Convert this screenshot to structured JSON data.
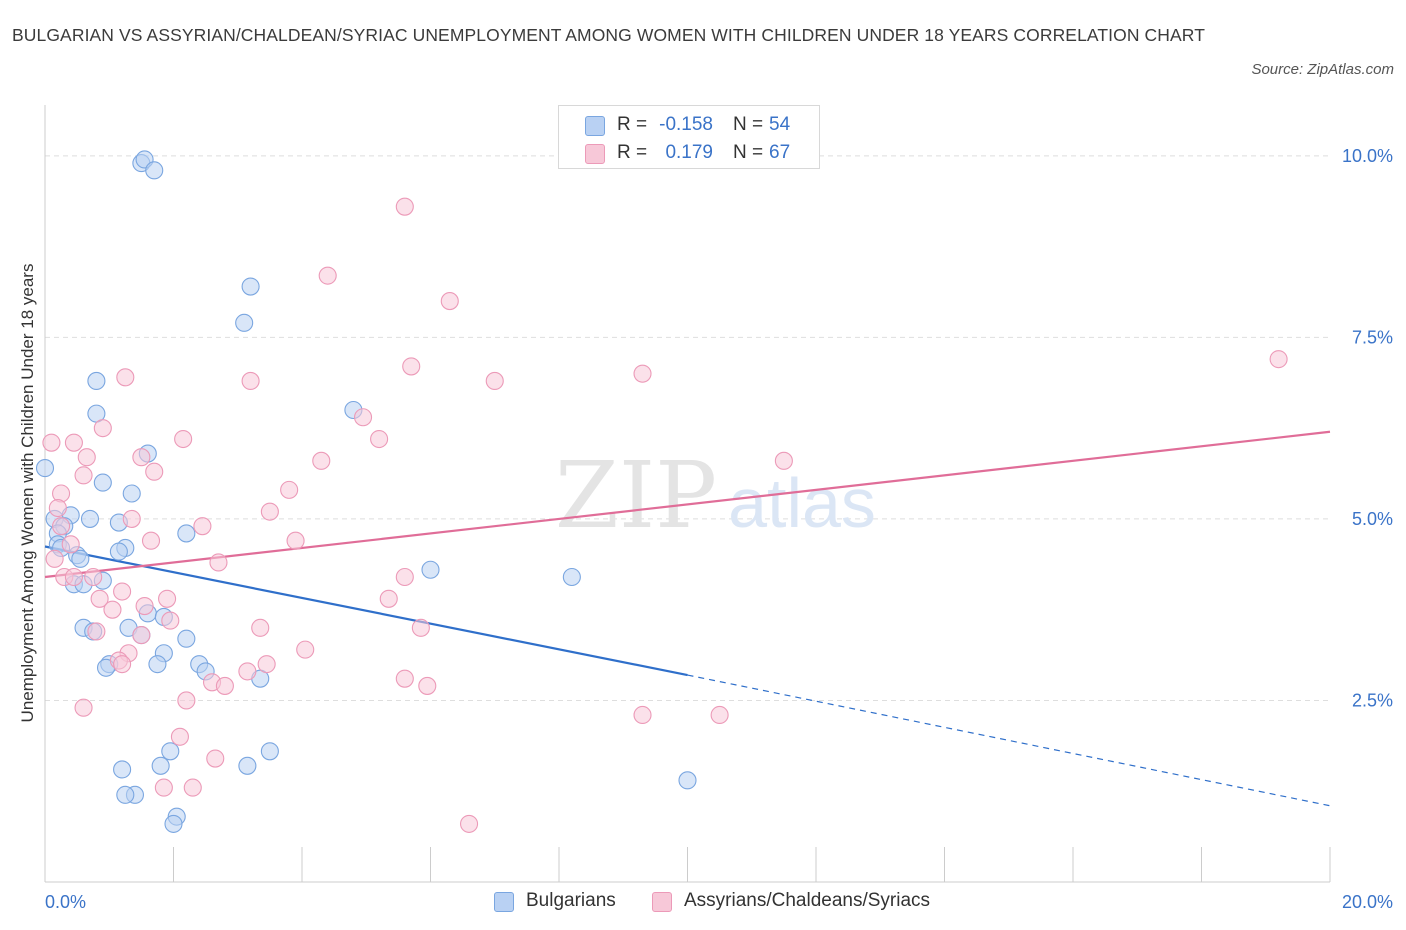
{
  "title": "BULGARIAN VS ASSYRIAN/CHALDEAN/SYRIAC UNEMPLOYMENT AMONG WOMEN WITH CHILDREN UNDER 18 YEARS CORRELATION CHART",
  "source": "Source: ZipAtlas.com",
  "watermark": {
    "zip": "ZIP",
    "atlas": "atlas"
  },
  "legend": {
    "rows": [
      {
        "r_label": "R =",
        "r_value": "-0.158",
        "n_label": "N =",
        "n_value": "54"
      },
      {
        "r_label": "R =",
        "r_value": "0.179",
        "n_label": "N =",
        "n_value": "67"
      }
    ]
  },
  "chart_data": {
    "type": "scatter",
    "title": "BULGARIAN VS ASSYRIAN/CHALDEAN/SYRIAC UNEMPLOYMENT AMONG WOMEN WITH CHILDREN UNDER 18 YEARS CORRELATION CHART",
    "xlabel": "",
    "ylabel": "Unemployment Among Women with Children Under 18 years",
    "xlim": [
      0,
      20
    ],
    "ylim": [
      0,
      10.7
    ],
    "x_tick_labels": [
      {
        "value": 0,
        "label": "0.0%"
      },
      {
        "value": 20,
        "label": "20.0%"
      }
    ],
    "y_tick_labels": [
      {
        "value": 2.5,
        "label": "2.5%"
      },
      {
        "value": 5,
        "label": "5.0%"
      },
      {
        "value": 7.5,
        "label": "7.5%"
      },
      {
        "value": 10,
        "label": "10.0%"
      }
    ],
    "x_minor_ticks": [
      0,
      2,
      4,
      6,
      8,
      10,
      12,
      14,
      16,
      18,
      20
    ],
    "grid": true,
    "legend_position": "top-center",
    "series": [
      {
        "name": "Bulgarians",
        "color": "#7aa6e0",
        "fill": "#b9d1f3",
        "trend_color": "#2f6fca",
        "trend": {
          "x0": 0,
          "y0": 4.62,
          "x1": 10,
          "y1": 2.85,
          "dash_to_x": 20,
          "dash_to_y": 1.05
        },
        "points": [
          [
            1.5,
            9.9
          ],
          [
            1.55,
            9.95
          ],
          [
            1.7,
            9.8
          ],
          [
            3.2,
            8.2
          ],
          [
            3.1,
            7.7
          ],
          [
            0.8,
            6.9
          ],
          [
            0.8,
            6.45
          ],
          [
            4.8,
            6.5
          ],
          [
            0,
            5.7
          ],
          [
            1.6,
            5.9
          ],
          [
            0.9,
            5.5
          ],
          [
            1.35,
            5.35
          ],
          [
            0.4,
            5.05
          ],
          [
            0.15,
            5.0
          ],
          [
            0.7,
            5.0
          ],
          [
            1.15,
            4.95
          ],
          [
            0.3,
            4.9
          ],
          [
            0.2,
            4.8
          ],
          [
            2.2,
            4.8
          ],
          [
            0.2,
            4.65
          ],
          [
            0.25,
            4.6
          ],
          [
            1.25,
            4.6
          ],
          [
            1.15,
            4.55
          ],
          [
            0.5,
            4.5
          ],
          [
            0.55,
            4.45
          ],
          [
            0.45,
            4.1
          ],
          [
            0.6,
            4.1
          ],
          [
            0.9,
            4.15
          ],
          [
            6.0,
            4.3
          ],
          [
            8.2,
            4.2
          ],
          [
            1.6,
            3.7
          ],
          [
            1.85,
            3.65
          ],
          [
            0.6,
            3.5
          ],
          [
            1.3,
            3.5
          ],
          [
            0.75,
            3.45
          ],
          [
            1.5,
            3.4
          ],
          [
            2.2,
            3.35
          ],
          [
            1.85,
            3.15
          ],
          [
            1.0,
            3.0
          ],
          [
            0.95,
            2.95
          ],
          [
            1.75,
            3.0
          ],
          [
            2.4,
            3.0
          ],
          [
            2.5,
            2.9
          ],
          [
            3.35,
            2.8
          ],
          [
            10.0,
            1.4
          ],
          [
            1.2,
            1.55
          ],
          [
            1.8,
            1.6
          ],
          [
            1.95,
            1.8
          ],
          [
            3.15,
            1.6
          ],
          [
            3.5,
            1.8
          ],
          [
            1.4,
            1.2
          ],
          [
            2.05,
            0.9
          ],
          [
            2.0,
            0.8
          ],
          [
            1.25,
            1.2
          ]
        ]
      },
      {
        "name": "Assyrians/Chaldeans/Syriacs",
        "color": "#ec9ab8",
        "fill": "#f7c8d8",
        "trend_color": "#e06d98",
        "trend": {
          "x0": 0,
          "y0": 4.2,
          "x1": 20,
          "y1": 6.2
        },
        "points": [
          [
            5.6,
            9.3
          ],
          [
            4.4,
            8.35
          ],
          [
            6.3,
            8.0
          ],
          [
            19.2,
            7.2
          ],
          [
            1.25,
            6.95
          ],
          [
            3.2,
            6.9
          ],
          [
            5.7,
            7.1
          ],
          [
            7.0,
            6.9
          ],
          [
            9.3,
            7.0
          ],
          [
            0.9,
            6.25
          ],
          [
            0.1,
            6.05
          ],
          [
            0.45,
            6.05
          ],
          [
            2.15,
            6.1
          ],
          [
            4.95,
            6.4
          ],
          [
            5.2,
            6.1
          ],
          [
            0.65,
            5.85
          ],
          [
            1.5,
            5.85
          ],
          [
            4.3,
            5.8
          ],
          [
            11.5,
            5.8
          ],
          [
            0.6,
            5.6
          ],
          [
            1.7,
            5.65
          ],
          [
            0.25,
            5.35
          ],
          [
            3.8,
            5.4
          ],
          [
            0.2,
            5.15
          ],
          [
            3.5,
            5.1
          ],
          [
            1.35,
            5.0
          ],
          [
            2.45,
            4.9
          ],
          [
            0.4,
            4.65
          ],
          [
            1.65,
            4.7
          ],
          [
            3.9,
            4.7
          ],
          [
            0.15,
            4.45
          ],
          [
            2.7,
            4.4
          ],
          [
            0.3,
            4.2
          ],
          [
            0.45,
            4.2
          ],
          [
            0.75,
            4.2
          ],
          [
            5.6,
            4.2
          ],
          [
            1.2,
            4.0
          ],
          [
            0.85,
            3.9
          ],
          [
            1.9,
            3.9
          ],
          [
            5.35,
            3.9
          ],
          [
            1.05,
            3.75
          ],
          [
            1.55,
            3.8
          ],
          [
            1.95,
            3.6
          ],
          [
            0.8,
            3.45
          ],
          [
            3.35,
            3.5
          ],
          [
            5.85,
            3.5
          ],
          [
            1.5,
            3.4
          ],
          [
            1.3,
            3.15
          ],
          [
            1.15,
            3.05
          ],
          [
            1.2,
            3.0
          ],
          [
            3.45,
            3.0
          ],
          [
            3.15,
            2.9
          ],
          [
            2.6,
            2.75
          ],
          [
            2.8,
            2.7
          ],
          [
            5.6,
            2.8
          ],
          [
            5.95,
            2.7
          ],
          [
            0.6,
            2.4
          ],
          [
            2.2,
            2.5
          ],
          [
            9.3,
            2.3
          ],
          [
            10.5,
            2.3
          ],
          [
            2.1,
            2.0
          ],
          [
            2.65,
            1.7
          ],
          [
            1.85,
            1.3
          ],
          [
            2.3,
            1.3
          ],
          [
            6.6,
            0.8
          ],
          [
            0.25,
            4.9
          ],
          [
            4.05,
            3.2
          ]
        ]
      }
    ]
  }
}
